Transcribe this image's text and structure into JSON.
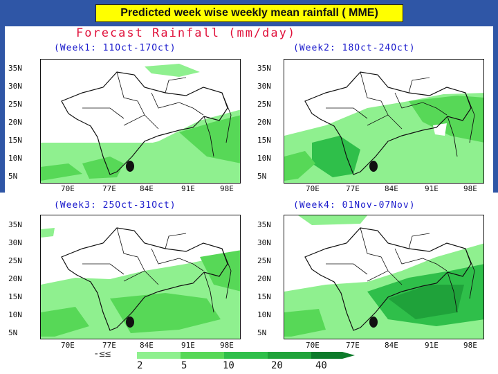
{
  "banner": {
    "title": "Predicted week wise weekly mean rainfall  ( MME)"
  },
  "figure": {
    "title": "Forecast Rainfall (mm/day)"
  },
  "panels": [
    {
      "label": "(Week1: 11Oct-17Oct)"
    },
    {
      "label": "(Week2: 18Oct-24Oct)"
    },
    {
      "label": "(Week3: 25Oct-31Oct)"
    },
    {
      "label": "(Week4: 01Nov-07Nov)"
    }
  ],
  "axes": {
    "lat_ticks": [
      "35N",
      "30N",
      "25N",
      "20N",
      "15N",
      "10N",
      "5N"
    ],
    "lon_ticks": [
      "70E",
      "77E",
      "84E",
      "91E",
      "98E"
    ]
  },
  "legend": {
    "levels": [
      "2",
      "5",
      "10",
      "20",
      "40"
    ],
    "colors": [
      "#8ff08f",
      "#57d857",
      "#2fbf4a",
      "#1fa23a",
      "#0c7a2a"
    ],
    "decoration": "-≤≤"
  },
  "colors": {
    "banner_bg": "#2f56a6",
    "banner_box": "#ffff00",
    "title_red": "#e0103a",
    "label_blue": "#1a1acc"
  }
}
